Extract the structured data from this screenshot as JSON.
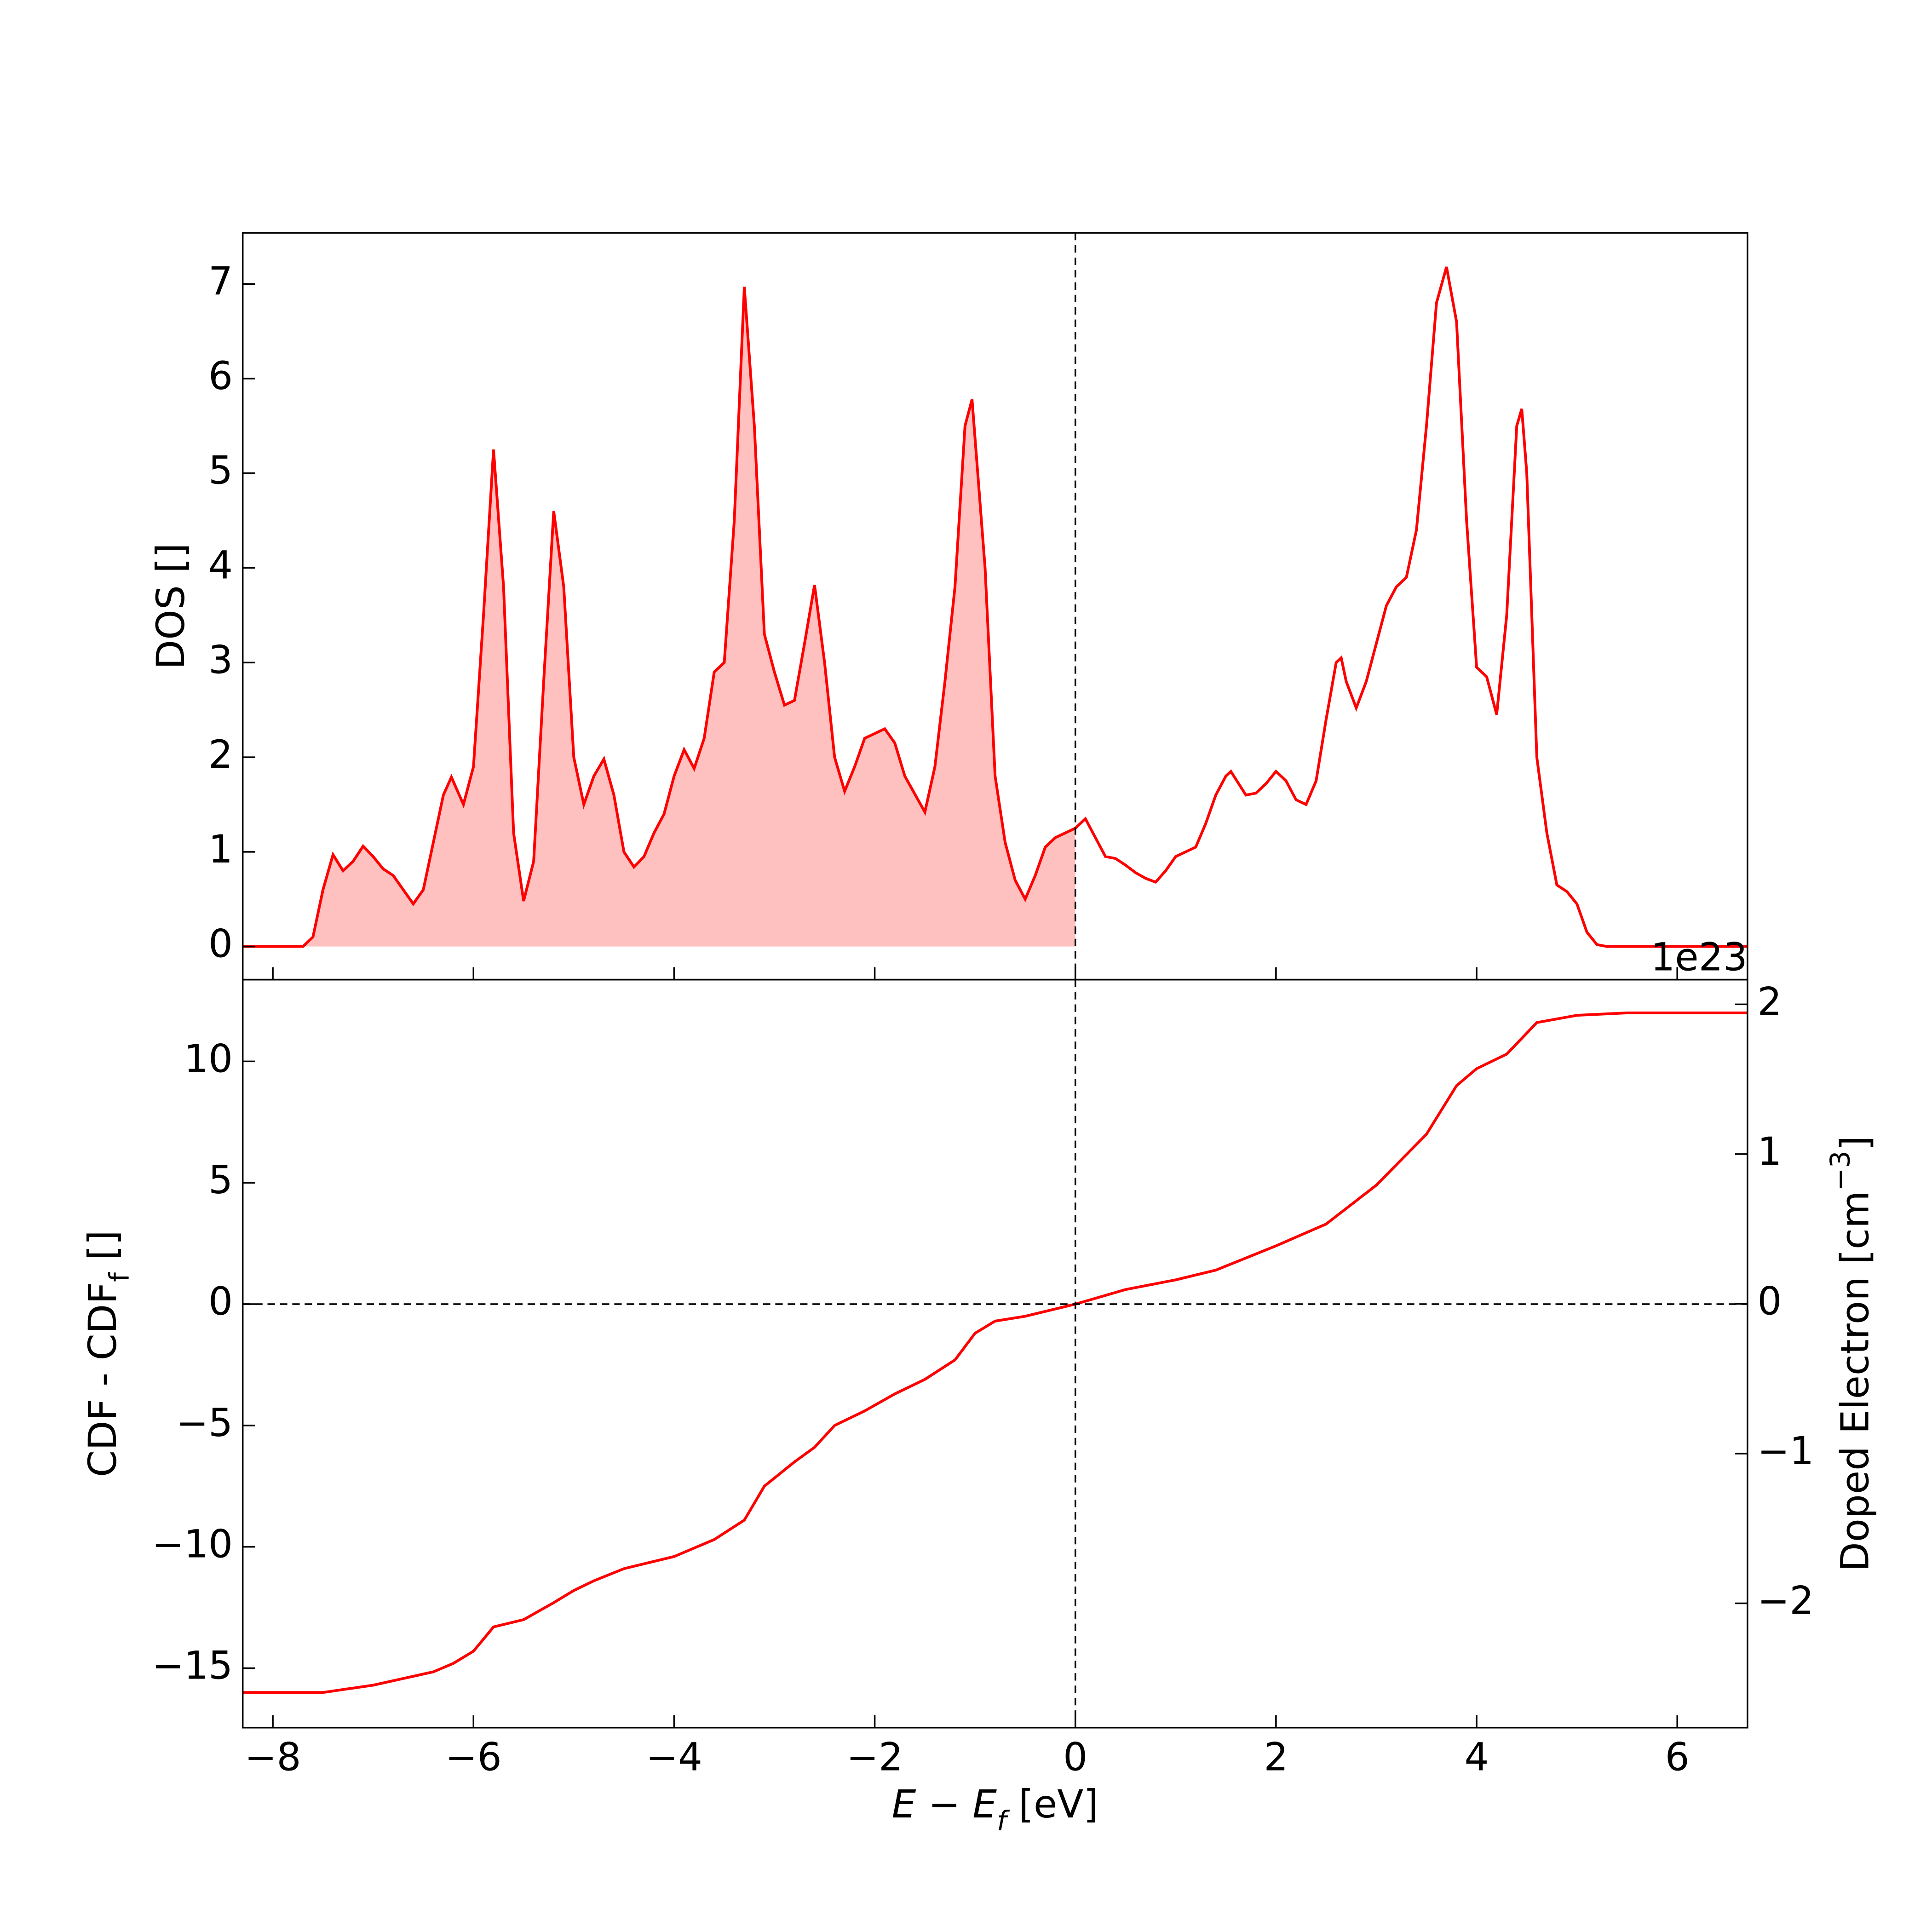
{
  "chart_data": [
    {
      "type": "line",
      "ylabel": "DOS []",
      "color": "#ff0000",
      "fill_color": "#ffc0c0",
      "fill_below_x": 0,
      "vline": 0,
      "xlim": [
        -8.3,
        6.7
      ],
      "xticks": [
        -8,
        -6,
        -4,
        -2,
        0,
        2,
        4,
        6
      ],
      "ylim": [
        -0.35,
        7.54
      ],
      "yticks": [
        0,
        1,
        2,
        3,
        4,
        5,
        6,
        7
      ],
      "x": [
        -8.3,
        -7.7,
        -7.6,
        -7.5,
        -7.4,
        -7.3,
        -7.2,
        -7.1,
        -7.0,
        -6.9,
        -6.8,
        -6.7,
        -6.6,
        -6.5,
        -6.4,
        -6.3,
        -6.22,
        -6.1,
        -6.0,
        -5.9,
        -5.8,
        -5.7,
        -5.6,
        -5.5,
        -5.4,
        -5.3,
        -5.2,
        -5.1,
        -5.0,
        -4.9,
        -4.8,
        -4.7,
        -4.6,
        -4.5,
        -4.4,
        -4.3,
        -4.2,
        -4.1,
        -4.0,
        -3.9,
        -3.8,
        -3.7,
        -3.6,
        -3.5,
        -3.4,
        -3.3,
        -3.2,
        -3.1,
        -3.0,
        -2.9,
        -2.8,
        -2.7,
        -2.6,
        -2.5,
        -2.4,
        -2.3,
        -2.2,
        -2.1,
        -2.0,
        -1.9,
        -1.8,
        -1.7,
        -1.5,
        -1.4,
        -1.3,
        -1.2,
        -1.1,
        -1.03,
        -0.9,
        -0.8,
        -0.7,
        -0.6,
        -0.5,
        -0.4,
        -0.3,
        -0.2,
        -0.1,
        0.0,
        0.1,
        0.2,
        0.3,
        0.4,
        0.5,
        0.6,
        0.7,
        0.8,
        0.9,
        1.0,
        1.1,
        1.2,
        1.3,
        1.4,
        1.5,
        1.55,
        1.7,
        1.8,
        1.9,
        2.0,
        2.1,
        2.2,
        2.3,
        2.4,
        2.5,
        2.6,
        2.65,
        2.7,
        2.8,
        2.9,
        3.0,
        3.1,
        3.2,
        3.3,
        3.4,
        3.5,
        3.6,
        3.7,
        3.8,
        3.9,
        4.0,
        4.1,
        4.2,
        4.3,
        4.4,
        4.45,
        4.5,
        4.6,
        4.7,
        4.8,
        4.9,
        5.0,
        5.1,
        5.2,
        5.3,
        6.7
      ],
      "values": [
        0,
        0,
        0.1,
        0.6,
        0.97,
        0.8,
        0.9,
        1.06,
        0.95,
        0.82,
        0.75,
        0.6,
        0.45,
        0.6,
        1.1,
        1.6,
        1.79,
        1.5,
        1.9,
        3.5,
        5.25,
        3.8,
        1.2,
        0.48,
        0.9,
        2.8,
        4.6,
        3.8,
        2.0,
        1.5,
        1.8,
        1.98,
        1.6,
        1.0,
        0.84,
        0.95,
        1.2,
        1.4,
        1.8,
        2.08,
        1.88,
        2.2,
        2.9,
        3.0,
        4.5,
        6.97,
        5.5,
        3.3,
        2.9,
        2.55,
        2.6,
        3.2,
        3.82,
        3.0,
        2.0,
        1.64,
        1.9,
        2.2,
        2.25,
        2.3,
        2.15,
        1.8,
        1.42,
        1.9,
        2.8,
        3.8,
        5.5,
        5.78,
        4.0,
        1.8,
        1.1,
        0.7,
        0.5,
        0.75,
        1.05,
        1.15,
        1.2,
        1.25,
        1.35,
        1.15,
        0.95,
        0.93,
        0.86,
        0.78,
        0.72,
        0.68,
        0.8,
        0.95,
        1.0,
        1.05,
        1.3,
        1.6,
        1.8,
        1.85,
        1.6,
        1.62,
        1.72,
        1.85,
        1.75,
        1.55,
        1.5,
        1.75,
        2.4,
        3.0,
        3.05,
        2.8,
        2.52,
        2.8,
        3.2,
        3.6,
        3.8,
        3.9,
        4.4,
        5.5,
        6.8,
        7.18,
        6.6,
        4.5,
        2.95,
        2.85,
        2.45,
        3.5,
        5.5,
        5.68,
        5.0,
        2.0,
        1.2,
        0.65,
        0.58,
        0.45,
        0.15,
        0.02,
        0,
        0
      ]
    },
    {
      "type": "line",
      "xlabel": [
        "E − E",
        "f",
        " [eV]"
      ],
      "ylabel": [
        "CDF - CDF",
        "f",
        " []"
      ],
      "y2label": [
        "Doped Electron [cm",
        "−3",
        "]"
      ],
      "color": "#ff0000",
      "vline": 0,
      "hline": 0,
      "offset_text": "1e23",
      "xlim": [
        -8.3,
        6.7
      ],
      "xticks": [
        {
          "value": -8,
          "label": "−8"
        },
        {
          "value": -6,
          "label": "−6"
        },
        {
          "value": -4,
          "label": "−4"
        },
        {
          "value": -2,
          "label": "−2"
        },
        0,
        2,
        4,
        6
      ],
      "ylim": [
        -17.45,
        13.37
      ],
      "yticks": [
        {
          "value": -15,
          "label": "−15"
        },
        {
          "value": -10,
          "label": "−10"
        },
        {
          "value": -5,
          "label": "−5"
        },
        0,
        5,
        10
      ],
      "y2lim": [
        -2.83,
        2.165
      ],
      "y2ticks": [
        {
          "value": -2,
          "label": "−2"
        },
        {
          "value": -1,
          "label": "−1"
        },
        0,
        1,
        2
      ],
      "x": [
        -8.3,
        -7.5,
        -7.0,
        -6.4,
        -6.2,
        -6.0,
        -5.9,
        -5.8,
        -5.5,
        -5.2,
        -5.0,
        -4.8,
        -4.5,
        -4.0,
        -3.6,
        -3.3,
        -3.1,
        -2.8,
        -2.6,
        -2.4,
        -2.1,
        -1.8,
        -1.5,
        -1.2,
        -1.0,
        -0.8,
        -0.5,
        0.0,
        0.5,
        1.0,
        1.4,
        2.0,
        2.5,
        3.0,
        3.5,
        3.8,
        4.0,
        4.3,
        4.6,
        5.0,
        5.5,
        6.7
      ],
      "values": [
        -16.0,
        -16.0,
        -15.7,
        -15.15,
        -14.8,
        -14.3,
        -13.8,
        -13.3,
        -13.0,
        -12.3,
        -11.8,
        -11.4,
        -10.9,
        -10.4,
        -9.7,
        -8.9,
        -7.5,
        -6.5,
        -5.9,
        -5.0,
        -4.4,
        -3.7,
        -3.1,
        -2.3,
        -1.2,
        -0.7,
        -0.5,
        0.0,
        0.6,
        1.0,
        1.4,
        2.4,
        3.3,
        4.9,
        7.0,
        9.0,
        9.7,
        10.3,
        11.6,
        11.9,
        12.0,
        12.0
      ]
    }
  ]
}
